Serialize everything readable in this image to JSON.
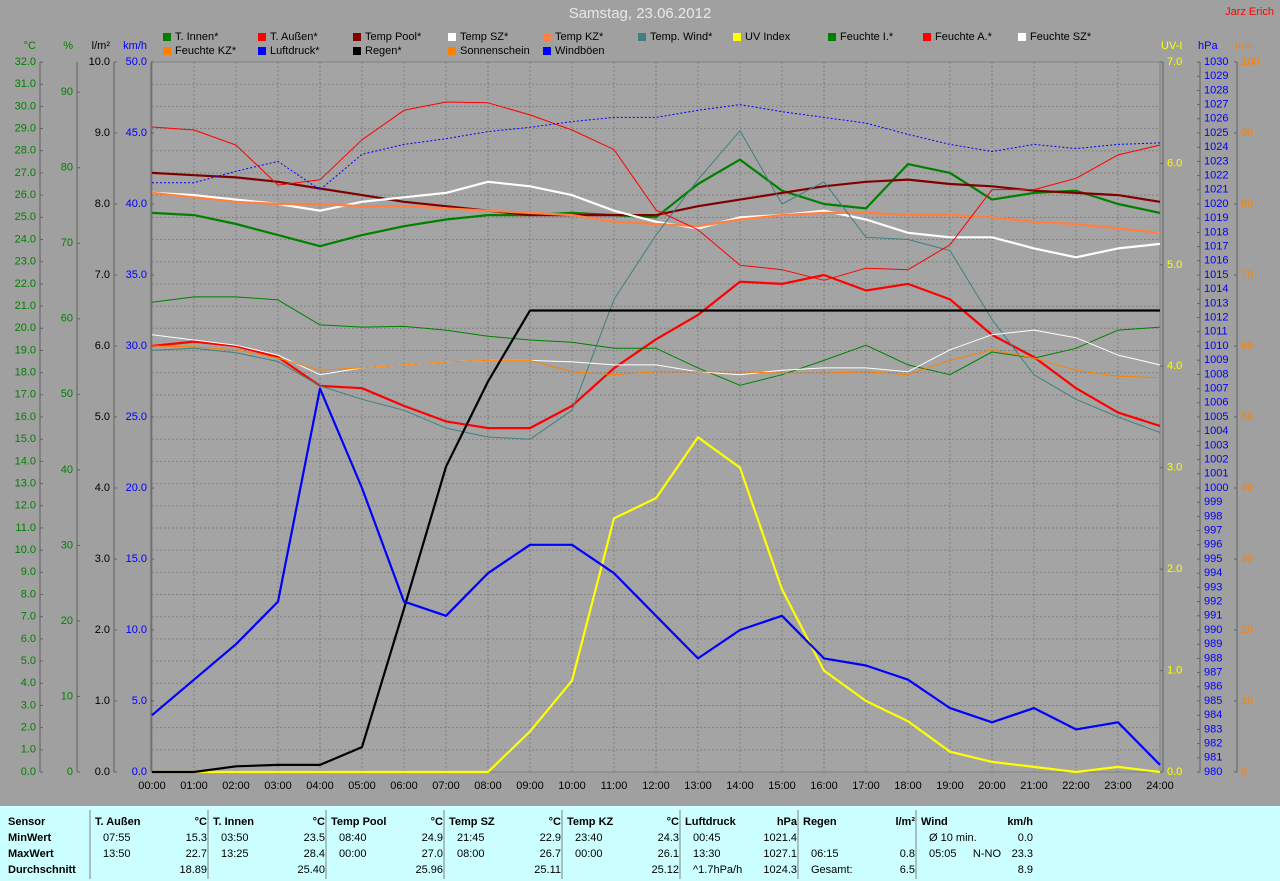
{
  "chart_data": {
    "type": "line",
    "title": "Samstag, 23.06.2012",
    "subtitle": "Jarz Erich",
    "grid": true,
    "x": [
      0,
      1,
      2,
      3,
      4,
      5,
      6,
      7,
      8,
      9,
      10,
      11,
      12,
      13,
      14,
      15,
      16,
      17,
      18,
      19,
      20,
      21,
      22,
      23,
      24
    ],
    "xlim": [
      0,
      24
    ],
    "xticks": [
      {
        "value": 0,
        "label": "00:00"
      },
      {
        "value": 1,
        "label": "01:00"
      },
      {
        "value": 2,
        "label": "02:00"
      },
      {
        "value": 3,
        "label": "03:00"
      },
      {
        "value": 4,
        "label": "04:00"
      },
      {
        "value": 5,
        "label": "05:00"
      },
      {
        "value": 6,
        "label": "06:00"
      },
      {
        "value": 7,
        "label": "07:00"
      },
      {
        "value": 8,
        "label": "08:00"
      },
      {
        "value": 9,
        "label": "09:00"
      },
      {
        "value": 10,
        "label": "10:00"
      },
      {
        "value": 11,
        "label": "11:00"
      },
      {
        "value": 12,
        "label": "12:00"
      },
      {
        "value": 13,
        "label": "13:00"
      },
      {
        "value": 14,
        "label": "14:00"
      },
      {
        "value": 15,
        "label": "15:00"
      },
      {
        "value": 16,
        "label": "16:00"
      },
      {
        "value": 17,
        "label": "17:00"
      },
      {
        "value": 18,
        "label": "18:00"
      },
      {
        "value": 19,
        "label": "19:00"
      },
      {
        "value": 20,
        "label": "20:00"
      },
      {
        "value": 21,
        "label": "21:00"
      },
      {
        "value": 22,
        "label": "22:00"
      },
      {
        "value": 23,
        "label": "23:00"
      },
      {
        "value": 24,
        "label": "24:00"
      }
    ],
    "axes": [
      {
        "label": "°C",
        "side": "left",
        "color": "#008000",
        "lim": [
          0,
          32
        ],
        "ticks": [
          {
            "value": 0,
            "label": "0.0"
          },
          {
            "value": 1,
            "label": "1.0"
          },
          {
            "value": 2,
            "label": "2.0"
          },
          {
            "value": 3,
            "label": "3.0"
          },
          {
            "value": 4,
            "label": "4.0"
          },
          {
            "value": 5,
            "label": "5.0"
          },
          {
            "value": 6,
            "label": "6.0"
          },
          {
            "value": 7,
            "label": "7.0"
          },
          {
            "value": 8,
            "label": "8.0"
          },
          {
            "value": 9,
            "label": "9.0"
          },
          {
            "value": 10,
            "label": "10.0"
          },
          {
            "value": 11,
            "label": "11.0"
          },
          {
            "value": 12,
            "label": "12.0"
          },
          {
            "value": 13,
            "label": "13.0"
          },
          {
            "value": 14,
            "label": "14.0"
          },
          {
            "value": 15,
            "label": "15.0"
          },
          {
            "value": 16,
            "label": "16.0"
          },
          {
            "value": 17,
            "label": "17.0"
          },
          {
            "value": 18,
            "label": "18.0"
          },
          {
            "value": 19,
            "label": "19.0"
          },
          {
            "value": 20,
            "label": "20.0"
          },
          {
            "value": 21,
            "label": "21.0"
          },
          {
            "value": 22,
            "label": "22.0"
          },
          {
            "value": 23,
            "label": "23.0"
          },
          {
            "value": 24,
            "label": "24.0"
          },
          {
            "value": 25,
            "label": "25.0"
          },
          {
            "value": 26,
            "label": "26.0"
          },
          {
            "value": 27,
            "label": "27.0"
          },
          {
            "value": 28,
            "label": "28.0"
          },
          {
            "value": 29,
            "label": "29.0"
          },
          {
            "value": 30,
            "label": "30.0"
          },
          {
            "value": 31,
            "label": "31.0"
          },
          {
            "value": 32,
            "label": "32.0"
          }
        ]
      },
      {
        "label": "%",
        "side": "left",
        "color": "#008000",
        "lim": [
          0,
          94
        ],
        "ticks": [
          0,
          10,
          20,
          30,
          40,
          50,
          60,
          70,
          80,
          90
        ]
      },
      {
        "label": "l/m²",
        "side": "left",
        "color": "#000000",
        "lim": [
          0,
          10
        ],
        "ticks": [
          {
            "value": 0,
            "label": "0.0"
          },
          {
            "value": 1,
            "label": "1.0"
          },
          {
            "value": 2,
            "label": "2.0"
          },
          {
            "value": 3,
            "label": "3.0"
          },
          {
            "value": 4,
            "label": "4.0"
          },
          {
            "value": 5,
            "label": "5.0"
          },
          {
            "value": 6,
            "label": "6.0"
          },
          {
            "value": 7,
            "label": "7.0"
          },
          {
            "value": 8,
            "label": "8.0"
          },
          {
            "value": 9,
            "label": "9.0"
          },
          {
            "value": 10,
            "label": "10.0"
          }
        ]
      },
      {
        "label": "km/h",
        "side": "left",
        "color": "#0000ff",
        "lim": [
          0,
          50
        ],
        "ticks": [
          {
            "value": 0,
            "label": "0.0"
          },
          {
            "value": 5,
            "label": "5.0"
          },
          {
            "value": 10,
            "label": "10.0"
          },
          {
            "value": 15,
            "label": "15.0"
          },
          {
            "value": 20,
            "label": "20.0"
          },
          {
            "value": 25,
            "label": "25.0"
          },
          {
            "value": 30,
            "label": "30.0"
          },
          {
            "value": 35,
            "label": "35.0"
          },
          {
            "value": 40,
            "label": "40.0"
          },
          {
            "value": 45,
            "label": "45.0"
          },
          {
            "value": 50,
            "label": "50.0"
          }
        ]
      },
      {
        "label": "UV-I",
        "side": "right",
        "color": "#ffff00",
        "lim": [
          0,
          7
        ],
        "ticks": [
          {
            "value": 0,
            "label": "0.0"
          },
          {
            "value": 1,
            "label": "1.0"
          },
          {
            "value": 2,
            "label": "2.0"
          },
          {
            "value": 3,
            "label": "3.0"
          },
          {
            "value": 4,
            "label": "4.0"
          },
          {
            "value": 5,
            "label": "5.0"
          },
          {
            "value": 6,
            "label": "6.0"
          },
          {
            "value": 7,
            "label": "7.0"
          }
        ]
      },
      {
        "label": "hPa",
        "side": "right",
        "color": "#0000ff",
        "lim": [
          980,
          1030
        ],
        "ticks": [
          980,
          981,
          982,
          983,
          984,
          985,
          986,
          987,
          988,
          989,
          990,
          991,
          992,
          993,
          994,
          995,
          996,
          997,
          998,
          999,
          1000,
          1001,
          1002,
          1003,
          1004,
          1005,
          1006,
          1007,
          1008,
          1009,
          1010,
          1011,
          1012,
          1013,
          1014,
          1015,
          1016,
          1017,
          1018,
          1019,
          1020,
          1021,
          1022,
          1023,
          1024,
          1025,
          1026,
          1027,
          1028,
          1029,
          1030
        ]
      },
      {
        "label": "min",
        "side": "right",
        "color": "#ff8000",
        "lim": [
          0,
          100
        ],
        "ticks": [
          0,
          10,
          20,
          30,
          40,
          50,
          60,
          70,
          80,
          90,
          100
        ]
      }
    ],
    "series": [
      {
        "name": "T. Innen*",
        "color": "#008000",
        "axis": "°C",
        "style": "thick",
        "values": [
          25.2,
          25.1,
          24.7,
          24.2,
          23.7,
          24.2,
          24.6,
          24.9,
          25.1,
          25.1,
          25.2,
          25.1,
          25.0,
          26.5,
          27.6,
          26.2,
          25.6,
          25.4,
          27.4,
          27.0,
          25.8,
          26.1,
          26.2,
          25.6,
          25.2
        ]
      },
      {
        "name": "T. Außen*",
        "color": "#ff0000",
        "axis": "°C",
        "style": "thick",
        "values": [
          19.2,
          19.4,
          19.2,
          18.7,
          17.4,
          17.3,
          16.5,
          15.8,
          15.5,
          15.5,
          16.5,
          18.2,
          19.5,
          20.6,
          22.1,
          22.0,
          22.4,
          21.7,
          22.0,
          21.3,
          19.7,
          18.7,
          17.3,
          16.2,
          15.6
        ]
      },
      {
        "name": "Temp Pool*",
        "color": "#800000",
        "axis": "°C",
        "style": "thick",
        "values": [
          27.0,
          26.9,
          26.8,
          26.6,
          26.3,
          26.0,
          25.7,
          25.5,
          25.3,
          25.1,
          25.1,
          25.1,
          25.1,
          25.5,
          25.8,
          26.1,
          26.4,
          26.6,
          26.7,
          26.5,
          26.4,
          26.2,
          26.1,
          26.0,
          25.7
        ]
      },
      {
        "name": "Temp SZ*",
        "color": "#ffffff",
        "axis": "°C",
        "style": "thick",
        "values": [
          26.1,
          26.0,
          25.8,
          25.6,
          25.3,
          25.7,
          25.9,
          26.1,
          26.6,
          26.4,
          26.0,
          25.3,
          24.8,
          24.5,
          25.0,
          25.1,
          25.3,
          24.9,
          24.3,
          24.1,
          24.1,
          23.6,
          23.2,
          23.6,
          23.8
        ]
      },
      {
        "name": "Temp KZ*",
        "color": "#ff8040",
        "axis": "°C",
        "style": "thick",
        "values": [
          26.1,
          25.9,
          25.7,
          25.6,
          25.6,
          25.5,
          25.5,
          25.4,
          25.3,
          25.2,
          25.1,
          24.8,
          24.7,
          24.6,
          24.9,
          25.1,
          25.2,
          25.2,
          25.1,
          25.1,
          25.0,
          24.8,
          24.7,
          24.5,
          24.3
        ]
      },
      {
        "name": "Temp. Wind*",
        "color": "#408080",
        "axis": "°C",
        "style": "thin",
        "values": [
          19.0,
          19.1,
          18.9,
          18.5,
          17.4,
          16.8,
          16.3,
          15.5,
          15.1,
          15.0,
          16.3,
          21.3,
          24.2,
          26.7,
          28.9,
          25.6,
          26.6,
          24.1,
          24.0,
          23.5,
          20.4,
          17.9,
          16.8,
          16.0,
          15.3
        ]
      },
      {
        "name": "UV Index",
        "color": "#ffff00",
        "axis": "UV-I",
        "style": "thick",
        "values": [
          0,
          0,
          0,
          0,
          0,
          0,
          0,
          0,
          0,
          0.4,
          0.9,
          2.5,
          2.7,
          3.3,
          3.0,
          1.8,
          1.0,
          0.7,
          0.5,
          0.2,
          0.1,
          0.05,
          0,
          0.05,
          0
        ]
      },
      {
        "name": "Feuchte I.*",
        "color": "#008000",
        "axis": "%",
        "style": "thin",
        "values": [
          62.2,
          62.9,
          62.9,
          62.5,
          59.2,
          58.9,
          59.0,
          58.5,
          57.7,
          57.2,
          56.9,
          56.1,
          56.1,
          53.5,
          51.2,
          52.6,
          54.5,
          56.5,
          53.9,
          52.6,
          55.6,
          54.8,
          56.1,
          58.5,
          58.9
        ]
      },
      {
        "name": "Feuchte A.*",
        "color": "#ff0000",
        "axis": "%",
        "style": "thin",
        "values": [
          85.4,
          85.0,
          83.0,
          77.7,
          78.4,
          83.7,
          87.6,
          88.7,
          88.6,
          87.0,
          85.0,
          82.4,
          74.4,
          71.8,
          67.1,
          66.5,
          65.1,
          66.7,
          66.5,
          69.8,
          77.1,
          77.1,
          78.6,
          81.7,
          83.0
        ]
      },
      {
        "name": "Feuchte SZ*",
        "color": "#ffffff",
        "axis": "%",
        "style": "thin",
        "values": [
          57.9,
          57.2,
          56.5,
          55.2,
          52.6,
          53.5,
          53.9,
          54.3,
          54.5,
          54.5,
          54.3,
          53.9,
          53.9,
          53.0,
          52.6,
          53.2,
          53.5,
          53.5,
          53.0,
          55.9,
          57.9,
          58.5,
          57.5,
          55.2,
          53.9
        ]
      },
      {
        "name": "Feuchte KZ*",
        "color": "#ff8000",
        "axis": "%",
        "style": "thin",
        "values": [
          56.4,
          56.3,
          55.9,
          54.8,
          53.2,
          53.5,
          53.9,
          54.3,
          54.5,
          54.5,
          53.0,
          52.6,
          53.0,
          53.0,
          53.0,
          52.8,
          52.8,
          53.0,
          52.6,
          54.5,
          55.9,
          54.8,
          53.2,
          52.4,
          52.2
        ]
      },
      {
        "name": "Luftdruck*",
        "color": "#0000ff",
        "axis": "hPa",
        "style": "dotted",
        "values": [
          1021.5,
          1021.5,
          1022.3,
          1023.0,
          1021.0,
          1023.5,
          1024.2,
          1024.6,
          1025.1,
          1025.4,
          1025.8,
          1026.1,
          1026.1,
          1026.6,
          1027.0,
          1026.5,
          1026.1,
          1025.7,
          1024.9,
          1024.2,
          1023.7,
          1024.2,
          1023.9,
          1024.2,
          1024.3
        ]
      },
      {
        "name": "Regen*",
        "color": "#000000",
        "axis": "l/m²",
        "style": "thick",
        "values": [
          0,
          0,
          0.08,
          0.1,
          0.1,
          0.35,
          2.3,
          4.3,
          5.5,
          6.5,
          6.5,
          6.5,
          6.5,
          6.5,
          6.5,
          6.5,
          6.5,
          6.5,
          6.5,
          6.5,
          6.5,
          6.5,
          6.5,
          6.5,
          6.5
        ]
      },
      {
        "name": "Sonnenschein",
        "color": "#ff8000",
        "axis": "min",
        "style": "thin",
        "values": [
          null,
          null,
          null,
          null,
          null,
          null,
          null,
          null,
          null,
          null,
          null,
          null,
          null,
          null,
          null,
          null,
          null,
          null,
          null,
          null,
          null,
          null,
          null,
          null,
          null
        ]
      },
      {
        "name": "Windböen",
        "color": "#0000ff",
        "axis": "km/h",
        "style": "thick",
        "values": [
          4,
          6.5,
          9,
          12,
          27,
          20,
          12,
          11,
          14,
          16,
          16,
          14,
          11,
          8,
          10,
          11,
          8,
          7.5,
          6.5,
          4.5,
          3.5,
          4.5,
          3,
          3.5,
          0.5
        ]
      }
    ]
  },
  "table": {
    "header": "Sensor",
    "row_labels": [
      "MinWert",
      "MaxWert",
      "Durchschnitt"
    ],
    "groups": [
      {
        "name": "T. Außen",
        "unit": "°C",
        "rows": [
          [
            "07:55",
            "15.3"
          ],
          [
            "13:50",
            "22.7"
          ],
          [
            "18.89"
          ]
        ]
      },
      {
        "name": "T. Innen",
        "unit": "°C",
        "rows": [
          [
            "03:50",
            "23.5"
          ],
          [
            "13:25",
            "28.4"
          ],
          [
            "25.40"
          ]
        ]
      },
      {
        "name": "Temp Pool",
        "unit": "°C",
        "rows": [
          [
            "08:40",
            "24.9"
          ],
          [
            "00:00",
            "27.0"
          ],
          [
            "25.96"
          ]
        ]
      },
      {
        "name": "Temp SZ",
        "unit": "°C",
        "rows": [
          [
            "21:45",
            "22.9"
          ],
          [
            "08:00",
            "26.7"
          ],
          [
            "25.11"
          ]
        ]
      },
      {
        "name": "Temp KZ",
        "unit": "°C",
        "rows": [
          [
            "23:40",
            "24.3"
          ],
          [
            "00:00",
            "26.1"
          ],
          [
            "25.12"
          ]
        ]
      },
      {
        "name": "Luftdruck",
        "unit": "hPa",
        "rows": [
          [
            "00:45",
            "1021.4"
          ],
          [
            "13:30",
            "1027.1"
          ],
          [
            "^1.7hPa/h",
            "1024.3"
          ]
        ]
      },
      {
        "name": "Regen",
        "unit": "l/m²",
        "rows": [
          [],
          [
            "06:15",
            "0.8"
          ],
          [
            "Gesamt:",
            "6.5"
          ]
        ]
      },
      {
        "name": "Wind",
        "unit": "km/h",
        "rows": [
          [
            "Ø 10 min.",
            "0.0"
          ],
          [
            "05:05",
            "N-NO",
            "23.3"
          ],
          [
            "8.9"
          ]
        ]
      }
    ]
  }
}
